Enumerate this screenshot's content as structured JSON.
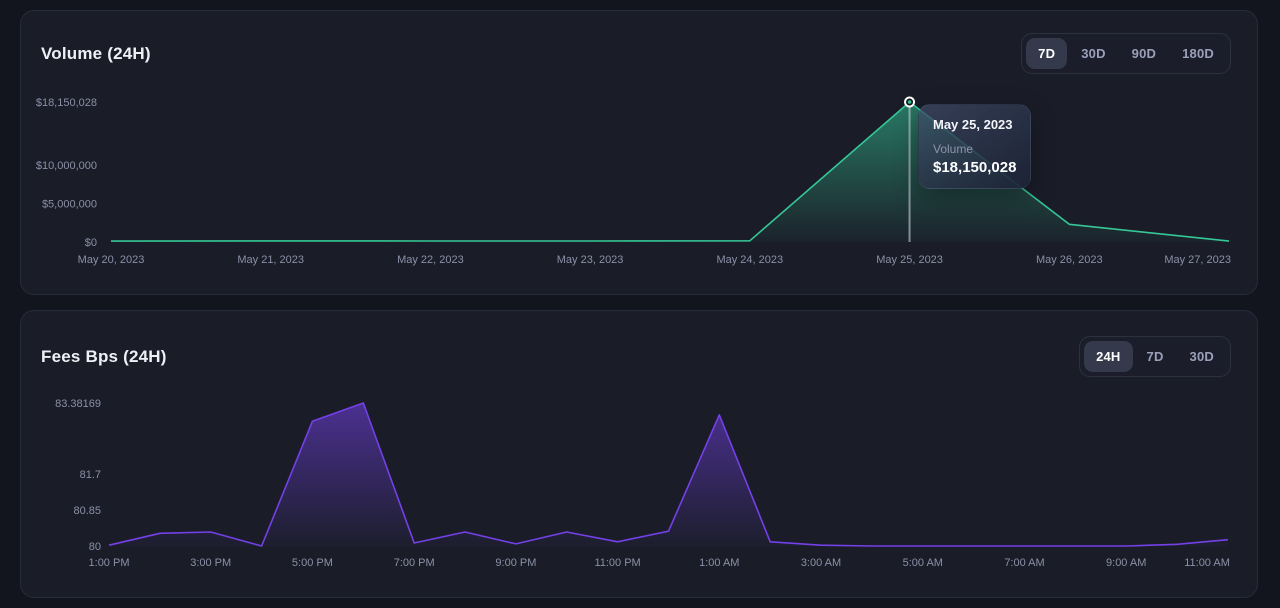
{
  "volume_panel": {
    "title": "Volume (24H)",
    "range_options": [
      "7D",
      "30D",
      "90D",
      "180D"
    ],
    "active_range": "7D",
    "tooltip": {
      "date": "May 25, 2023",
      "series_label": "Volume",
      "value": "$18,150,028"
    }
  },
  "fees_panel": {
    "title": "Fees Bps (24H)",
    "range_options": [
      "24H",
      "7D",
      "30D"
    ],
    "active_range": "24H"
  },
  "colors": {
    "page_bg": "#13151e",
    "panel_bg": "#1a1d28",
    "panel_border": "#272c3b",
    "axis_text": "#8b90a7",
    "volume_line": "#35c796",
    "fees_line": "#7440e8",
    "cursor_line": "rgba(220,225,235,0.55)",
    "active_pill_bg": "#343a4b"
  },
  "chart_data": [
    {
      "type": "area",
      "title": "Volume (24H)",
      "x_labels": [
        "May 20, 2023",
        "May 21, 2023",
        "May 22, 2023",
        "May 23, 2023",
        "May 24, 2023",
        "May 25, 2023",
        "May 26, 2023",
        "May 27, 2023"
      ],
      "series": [
        {
          "name": "Volume",
          "values": [
            120000,
            140000,
            125000,
            135000,
            150000,
            18150028,
            2300000,
            120000
          ]
        }
      ],
      "ylim": [
        0,
        18150028
      ],
      "y_ticks": [
        {
          "label": "$18,150,028",
          "value": 18150028
        },
        {
          "label": "$10,000,000",
          "value": 10000000
        },
        {
          "label": "$5,000,000",
          "value": 5000000
        },
        {
          "label": "$0",
          "value": 0
        }
      ],
      "grid": false,
      "legend": "none",
      "line_color": "#35c796",
      "highlight": {
        "index": 5,
        "x_label": "May 25, 2023",
        "value": 18150028,
        "value_text": "$18,150,028"
      }
    },
    {
      "type": "area",
      "title": "Fees Bps (24H)",
      "x": [
        "1:00 PM",
        "2:00 PM",
        "3:00 PM",
        "4:00 PM",
        "5:00 PM",
        "6:00 PM",
        "7:00 PM",
        "8:00 PM",
        "9:00 PM",
        "10:00 PM",
        "11:00 PM",
        "12:00 AM",
        "1:00 AM",
        "2:00 AM",
        "3:00 AM",
        "4:00 AM",
        "5:00 AM",
        "6:00 AM",
        "7:00 AM",
        "8:00 AM",
        "9:00 AM",
        "10:00 AM",
        "11:00 AM"
      ],
      "series": [
        {
          "name": "Fees Bps",
          "values": [
            80.02,
            80.3,
            80.33,
            80.0,
            82.95,
            83.38169,
            80.07,
            80.33,
            80.05,
            80.33,
            80.1,
            80.35,
            83.1,
            80.1,
            80.02,
            80.0,
            80.0,
            80.0,
            80.0,
            80.0,
            80.0,
            80.04,
            80.15
          ]
        }
      ],
      "x_labels": [
        "1:00 PM",
        "3:00 PM",
        "5:00 PM",
        "7:00 PM",
        "9:00 PM",
        "11:00 PM",
        "1:00 AM",
        "3:00 AM",
        "5:00 AM",
        "7:00 AM",
        "9:00 AM",
        "11:00 AM"
      ],
      "ylim": [
        80,
        83.38169
      ],
      "y_ticks": [
        {
          "label": "83.38169",
          "value": 83.38169
        },
        {
          "label": "81.7",
          "value": 81.7
        },
        {
          "label": "80.85",
          "value": 80.85
        },
        {
          "label": "80",
          "value": 80
        }
      ],
      "grid": false,
      "legend": "none",
      "line_color": "#7440e8"
    }
  ]
}
